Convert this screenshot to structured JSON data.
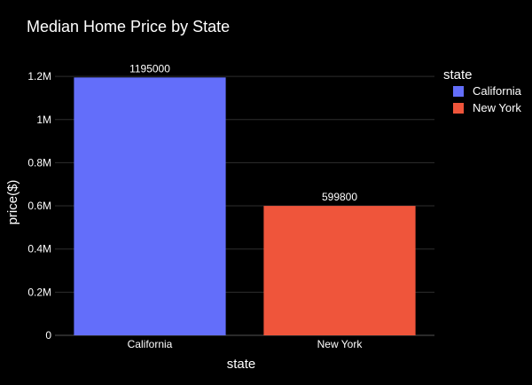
{
  "chart_data": {
    "type": "bar",
    "title": "Median Home Price by State",
    "xlabel": "state",
    "ylabel": "price($)",
    "categories": [
      "California",
      "New York"
    ],
    "series": [
      {
        "name": "California",
        "color": "#636efa",
        "values": [
          1195000,
          null
        ]
      },
      {
        "name": "New York",
        "color": "#ef553b",
        "values": [
          null,
          599800
        ]
      }
    ],
    "data_labels": [
      "1195000",
      "599800"
    ],
    "ylim": [
      0,
      1258000
    ],
    "yticks": [
      0,
      200000,
      400000,
      600000,
      800000,
      1000000,
      1200000
    ],
    "ytick_labels": [
      "0",
      "0.2M",
      "0.4M",
      "0.6M",
      "0.8M",
      "1M",
      "1.2M"
    ],
    "grid": true,
    "legend": {
      "title": "state",
      "position": "right",
      "items": [
        "California",
        "New York"
      ]
    },
    "background": "#000000"
  }
}
